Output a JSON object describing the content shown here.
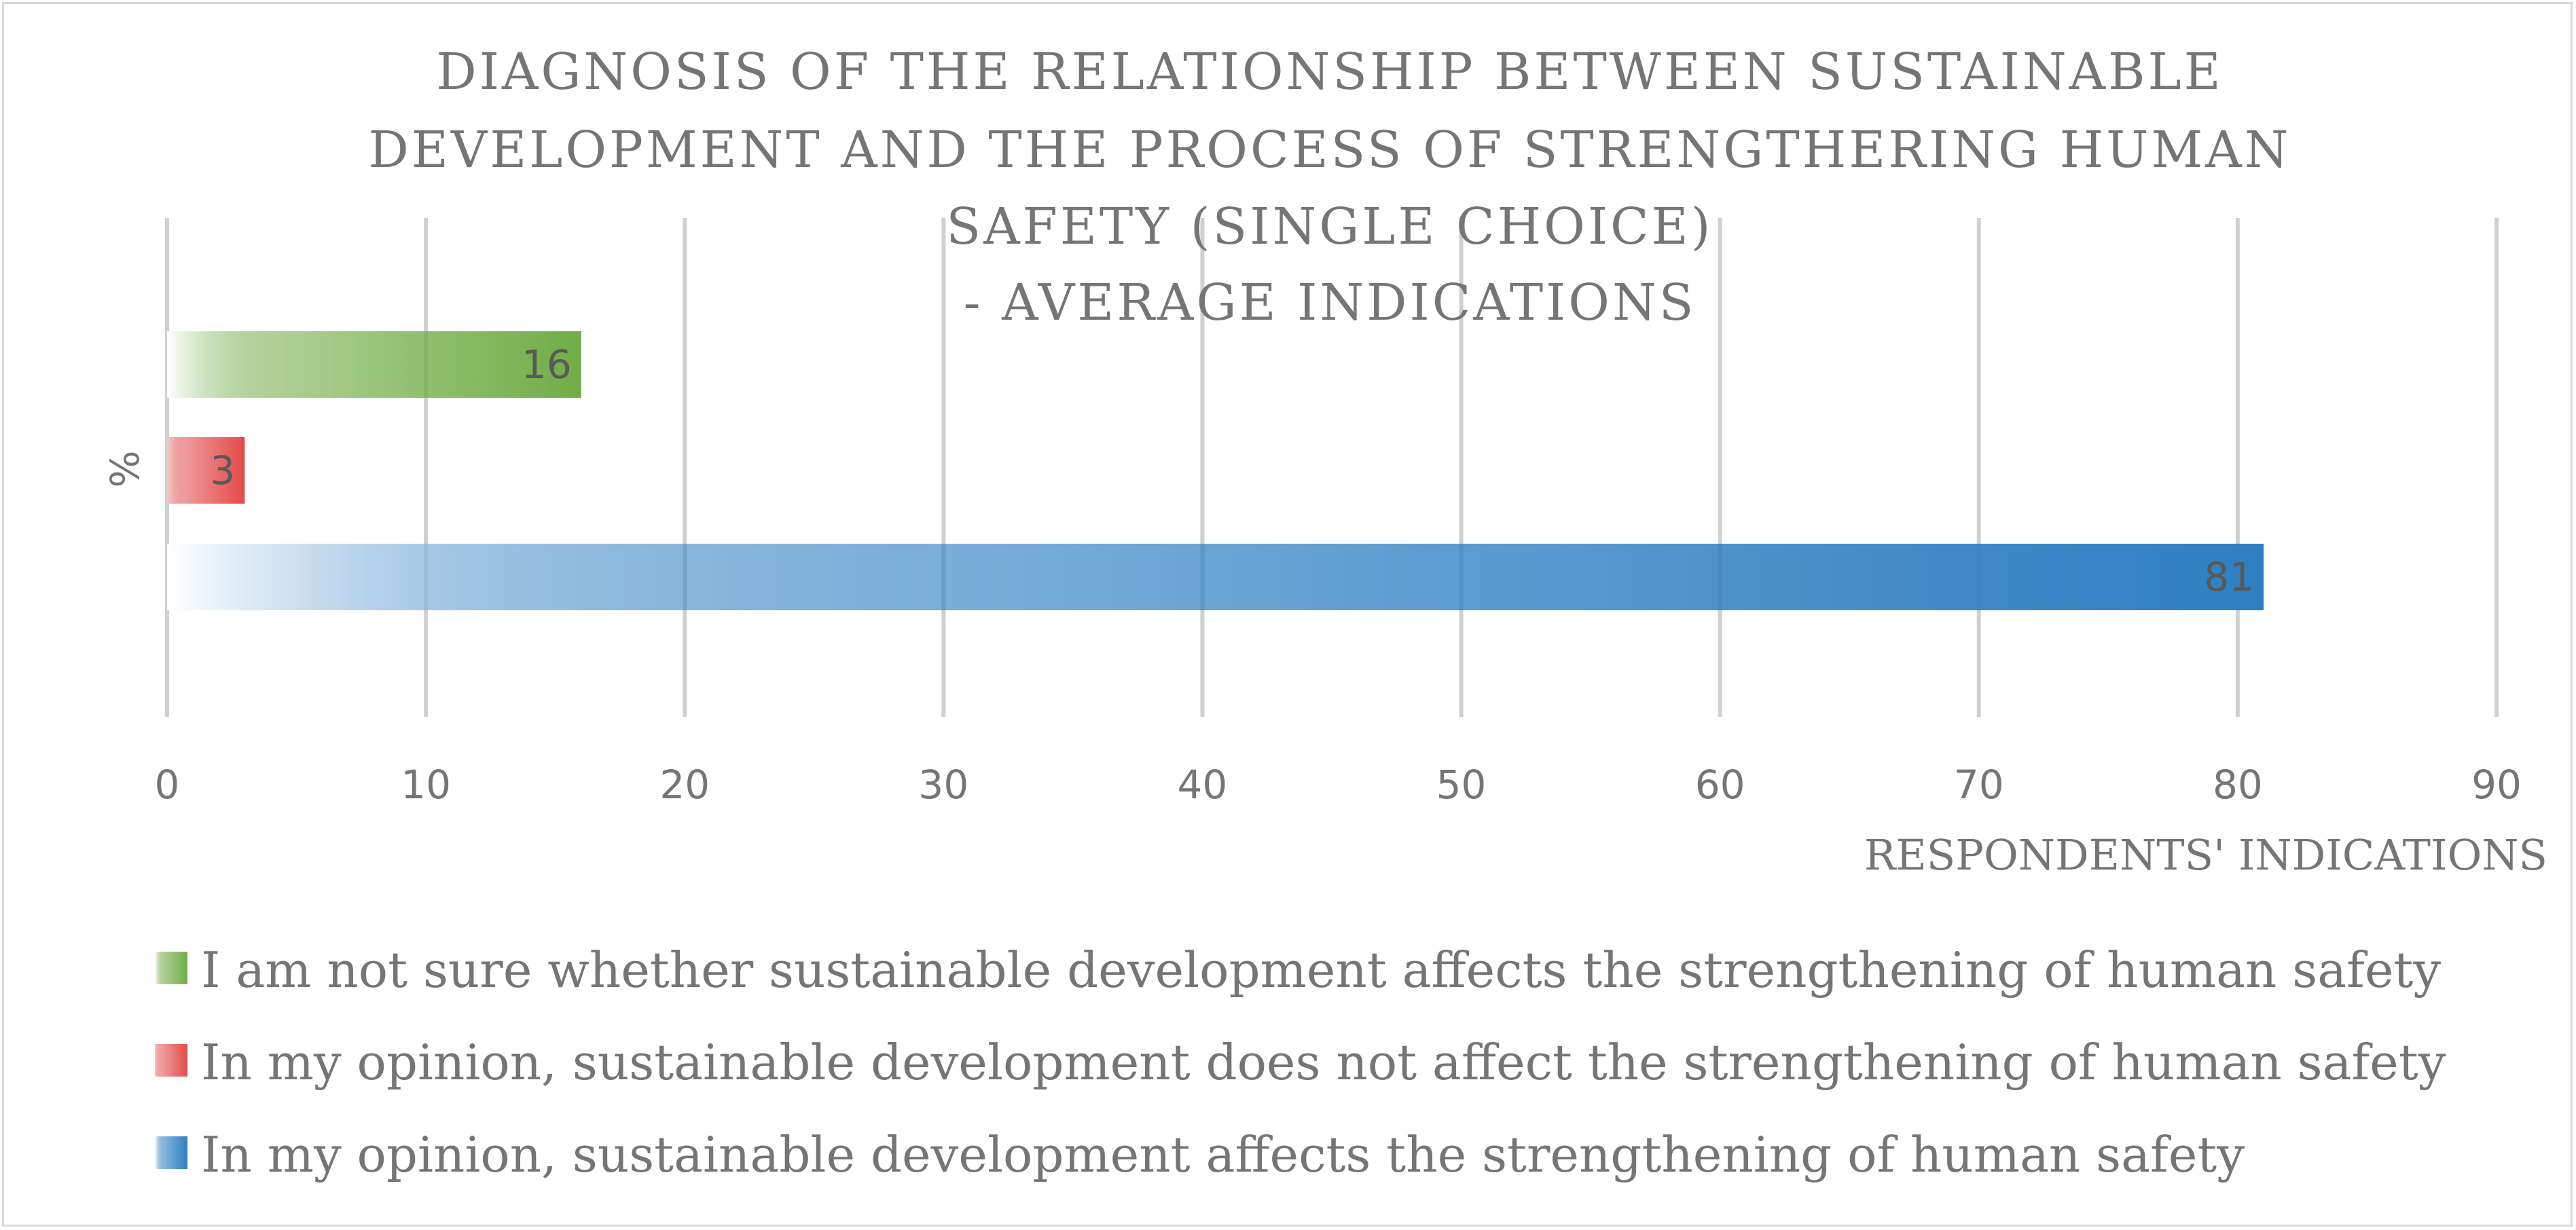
{
  "chart_data": {
    "type": "bar",
    "orientation": "horizontal",
    "title": [
      "DIAGNOSIS OF THE RELATIONSHIP BETWEEN SUSTAINABLE",
      "DEVELOPMENT AND THE PROCESS OF STRENGTHERING  HUMAN",
      "SAFETY (SINGLE CHOICE)",
      "- AVERAGE INDICATIONS"
    ],
    "xlabel": "RESPONDENTS' INDICATIONS",
    "ylabel": "%",
    "xlim": [
      0,
      90
    ],
    "xticks": [
      "0",
      "10",
      "20",
      "30",
      "40",
      "50",
      "60",
      "70",
      "80",
      "90"
    ],
    "grid": true,
    "legend_position": "bottom",
    "series": [
      {
        "name": "I am not sure whether sustainable development affects the strengthening of human safety",
        "value": 16,
        "label": "16",
        "color": "#70ad47",
        "fade_color": "#ffffff"
      },
      {
        "name": "In my opinion, sustainable development does not affect the strengthening of human safety",
        "value": 3,
        "label": "3",
        "color": "#e34a4a",
        "fade_color": "#f6c9c9"
      },
      {
        "name": "In my opinion, sustainable development affects the strengthening of human safety",
        "value": 81,
        "label": "81",
        "color": "#2e7fc2",
        "fade_color": "#ffffff"
      }
    ]
  }
}
